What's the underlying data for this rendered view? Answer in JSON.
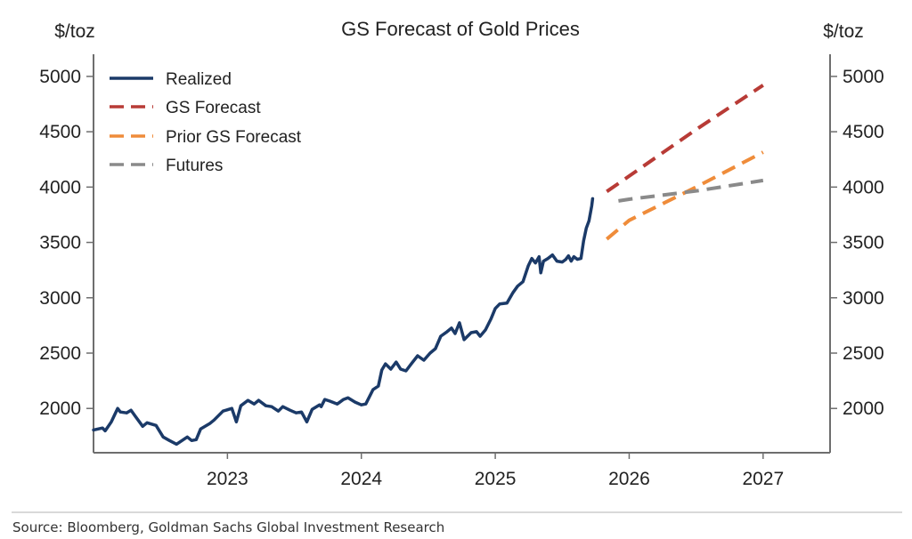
{
  "chart_data": {
    "type": "line",
    "title": "GS Forecast of Gold Prices",
    "ylabel_left": "$/toz",
    "ylabel_right": "$/toz",
    "xlabel": "",
    "xlim": [
      2022.0,
      2027.5
    ],
    "ylim": [
      1600,
      5200
    ],
    "xticks": [
      2023,
      2024,
      2025,
      2026,
      2027
    ],
    "xtick_labels": [
      "2023",
      "2024",
      "2025",
      "2026",
      "2027"
    ],
    "yticks": [
      2000,
      2500,
      3000,
      3500,
      4000,
      4500,
      5000
    ],
    "ytick_labels": [
      "2000",
      "2500",
      "3000",
      "3500",
      "4000",
      "4500",
      "5000"
    ],
    "grid": false,
    "legend_position": "top-left",
    "series": [
      {
        "name": "Realized",
        "color": "#1b3a68",
        "style": "solid",
        "x": [
          2022.0,
          2022.067,
          2022.087,
          2022.133,
          2022.18,
          2022.2,
          2022.247,
          2022.28,
          2022.313,
          2022.367,
          2022.4,
          2022.467,
          2022.52,
          2022.567,
          2022.62,
          2022.7,
          2022.733,
          2022.767,
          2022.8,
          2022.867,
          2022.9,
          2022.967,
          2023.033,
          2023.067,
          2023.1,
          2023.153,
          2023.2,
          2023.233,
          2023.287,
          2023.33,
          2023.38,
          2023.413,
          2023.467,
          2023.513,
          2023.553,
          2023.593,
          2023.633,
          2023.687,
          2023.7,
          2023.727,
          2023.767,
          2023.82,
          2023.867,
          2023.9,
          2023.953,
          2024.0,
          2024.033,
          2024.087,
          2024.127,
          2024.153,
          2024.18,
          2024.22,
          2024.26,
          2024.293,
          2024.333,
          2024.373,
          2024.42,
          2024.467,
          2024.513,
          2024.553,
          2024.593,
          2024.64,
          2024.673,
          2024.7,
          2024.733,
          2024.767,
          2024.82,
          2024.86,
          2024.887,
          2024.927,
          2024.967,
          2025.0,
          2025.033,
          2025.087,
          2025.133,
          2025.167,
          2025.207,
          2025.247,
          2025.273,
          2025.3,
          2025.327,
          2025.34,
          2025.36,
          2025.393,
          2025.427,
          2025.46,
          2025.5,
          2025.527,
          2025.547,
          2025.567,
          2025.587,
          2025.613,
          2025.64,
          2025.66,
          2025.68,
          2025.7,
          2025.72,
          2025.727
        ],
        "y": [
          1806,
          1823,
          1798,
          1879,
          2000,
          1968,
          1960,
          1984,
          1927,
          1839,
          1871,
          1847,
          1742,
          1710,
          1677,
          1742,
          1710,
          1718,
          1815,
          1863,
          1895,
          1976,
          2000,
          1879,
          2024,
          2073,
          2040,
          2073,
          2024,
          2016,
          1976,
          2016,
          1984,
          1960,
          1968,
          1879,
          1992,
          2032,
          2016,
          2081,
          2065,
          2040,
          2081,
          2097,
          2057,
          2032,
          2040,
          2170,
          2202,
          2347,
          2403,
          2355,
          2419,
          2355,
          2339,
          2403,
          2476,
          2436,
          2500,
          2540,
          2653,
          2694,
          2726,
          2677,
          2774,
          2621,
          2685,
          2694,
          2653,
          2710,
          2806,
          2903,
          2944,
          2952,
          3048,
          3105,
          3145,
          3290,
          3355,
          3315,
          3371,
          3226,
          3331,
          3355,
          3387,
          3331,
          3323,
          3347,
          3379,
          3331,
          3371,
          3347,
          3355,
          3516,
          3629,
          3694,
          3831,
          3895
        ]
      },
      {
        "name": "GS Forecast",
        "color": "#b83b36",
        "style": "dashed",
        "x": [
          2025.833,
          2026.0,
          2026.5,
          2027.0
        ],
        "y": [
          3960,
          4100,
          4520,
          4920
        ]
      },
      {
        "name": "Prior GS Forecast",
        "color": "#ef8c3a",
        "style": "dashed",
        "x": [
          2025.833,
          2026.0,
          2026.5,
          2027.0
        ],
        "y": [
          3530,
          3700,
          4000,
          4315
        ]
      },
      {
        "name": "Futures",
        "color": "#8a8a8a",
        "style": "dashed",
        "x": [
          2025.92,
          2026.0,
          2026.5,
          2027.0
        ],
        "y": [
          3875,
          3890,
          3965,
          4060
        ]
      }
    ]
  },
  "source": "Source: Bloomberg, Goldman Sachs Global Investment Research"
}
